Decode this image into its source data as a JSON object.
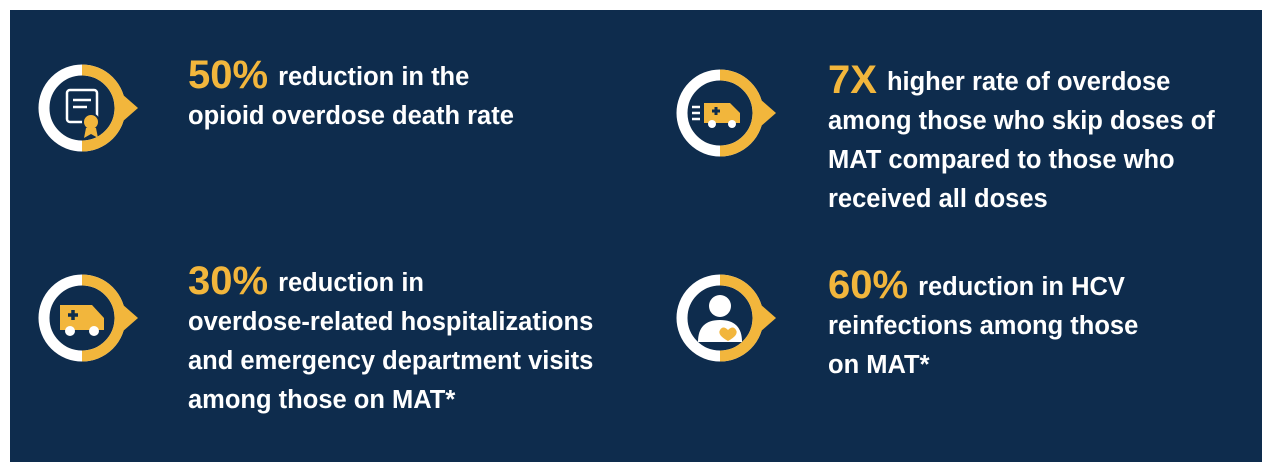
{
  "items": [
    {
      "stat": "50%",
      "lines": [
        "reduction in the",
        "opioid overdose death rate"
      ]
    },
    {
      "stat": "7X",
      "lines": [
        "higher rate of overdose",
        "among those who skip doses of",
        "MAT compared to those who",
        "received all doses"
      ]
    },
    {
      "stat": "30%",
      "lines": [
        "reduction in",
        "overdose-related hospitalizations",
        "and emergency department visits",
        "among those on MAT*"
      ]
    },
    {
      "stat": "60%",
      "lines": [
        "reduction in HCV",
        "reinfections among those",
        "on MAT*"
      ]
    }
  ]
}
